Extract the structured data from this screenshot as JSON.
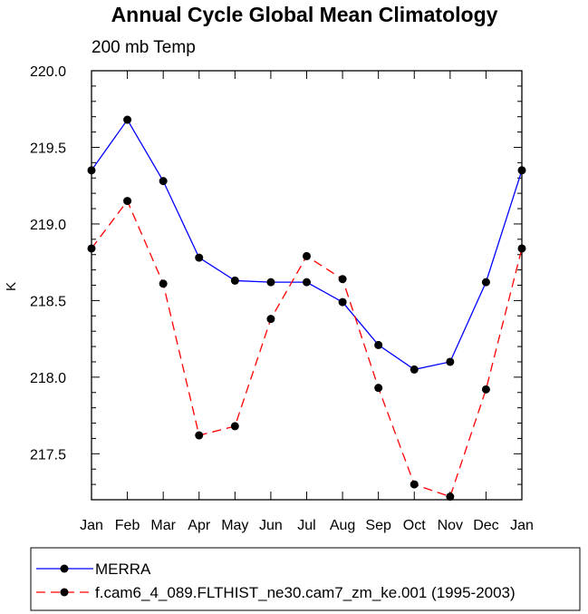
{
  "chart_data": {
    "type": "line",
    "title": "Annual Cycle Global Mean Climatology",
    "subtitle": "200 mb Temp",
    "xlabel": "",
    "ylabel": "K",
    "categories": [
      "Jan",
      "Feb",
      "Mar",
      "Apr",
      "May",
      "Jun",
      "Jul",
      "Aug",
      "Sep",
      "Oct",
      "Nov",
      "Dec",
      "Jan"
    ],
    "ylim": [
      217.2,
      220.0
    ],
    "yticks": [
      217.5,
      218.0,
      218.5,
      219.0,
      219.5,
      220.0
    ],
    "ytick_labels": [
      "217.5",
      "218.0",
      "218.5",
      "219.0",
      "219.5",
      "220.0"
    ],
    "grid": false,
    "series": [
      {
        "name": "MERRA",
        "color": "#0000ff",
        "dash": "solid",
        "values": [
          219.35,
          219.68,
          219.28,
          218.78,
          218.63,
          218.62,
          218.62,
          218.49,
          218.21,
          218.05,
          218.1,
          218.62,
          219.35
        ]
      },
      {
        "name": "f.cam6_4_089.FLTHIST_ne30.cam7_zm_ke.001 (1995-2003)",
        "color": "#ff0000",
        "dash": "dashed",
        "values": [
          218.84,
          219.15,
          218.61,
          217.62,
          217.68,
          218.38,
          218.79,
          218.64,
          217.93,
          217.3,
          217.22,
          217.92,
          218.84
        ]
      }
    ],
    "legend_position": "bottom"
  }
}
